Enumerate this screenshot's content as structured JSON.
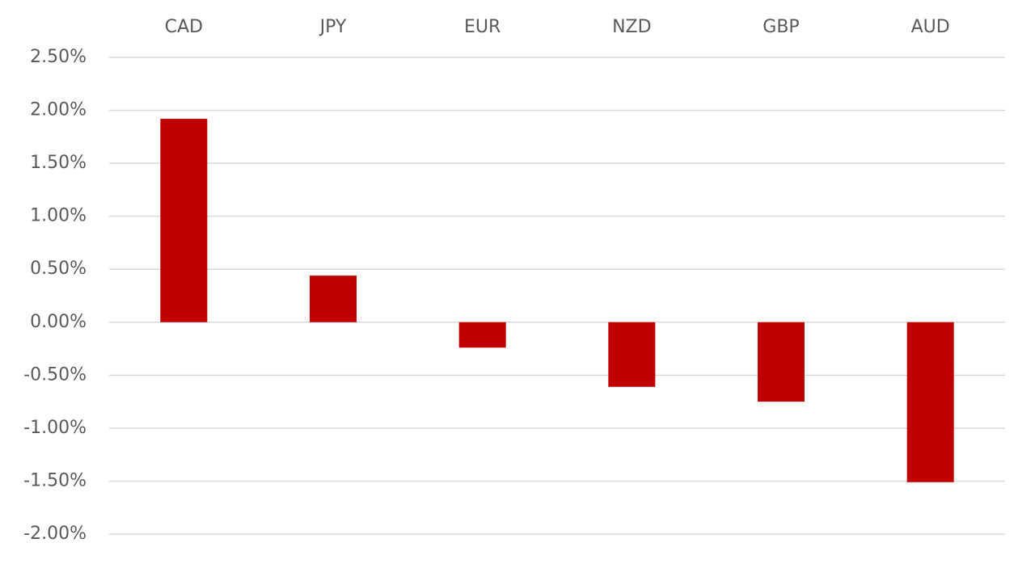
{
  "chart_data": {
    "type": "bar",
    "categories": [
      "CAD",
      "JPY",
      "EUR",
      "NZD",
      "GBP",
      "AUD"
    ],
    "values": [
      1.92,
      0.44,
      -0.24,
      -0.61,
      -0.75,
      -1.51
    ],
    "color": "#c00000",
    "ylim": [
      -2,
      2.5
    ],
    "yticks": [
      {
        "value": 2.5,
        "label": "2.50%"
      },
      {
        "value": 2,
        "label": "2.00%"
      },
      {
        "value": 1.5,
        "label": "1.50%"
      },
      {
        "value": 1,
        "label": "1.00%"
      },
      {
        "value": 0.5,
        "label": "0.50%"
      },
      {
        "value": 0,
        "label": "0.00%"
      },
      {
        "value": -0.5,
        "label": "-0.50%"
      },
      {
        "value": -1,
        "label": "-1.00%"
      },
      {
        "value": -1.5,
        "label": "-1.50%"
      },
      {
        "value": -2,
        "label": "-2.00%"
      }
    ],
    "grid": true
  }
}
